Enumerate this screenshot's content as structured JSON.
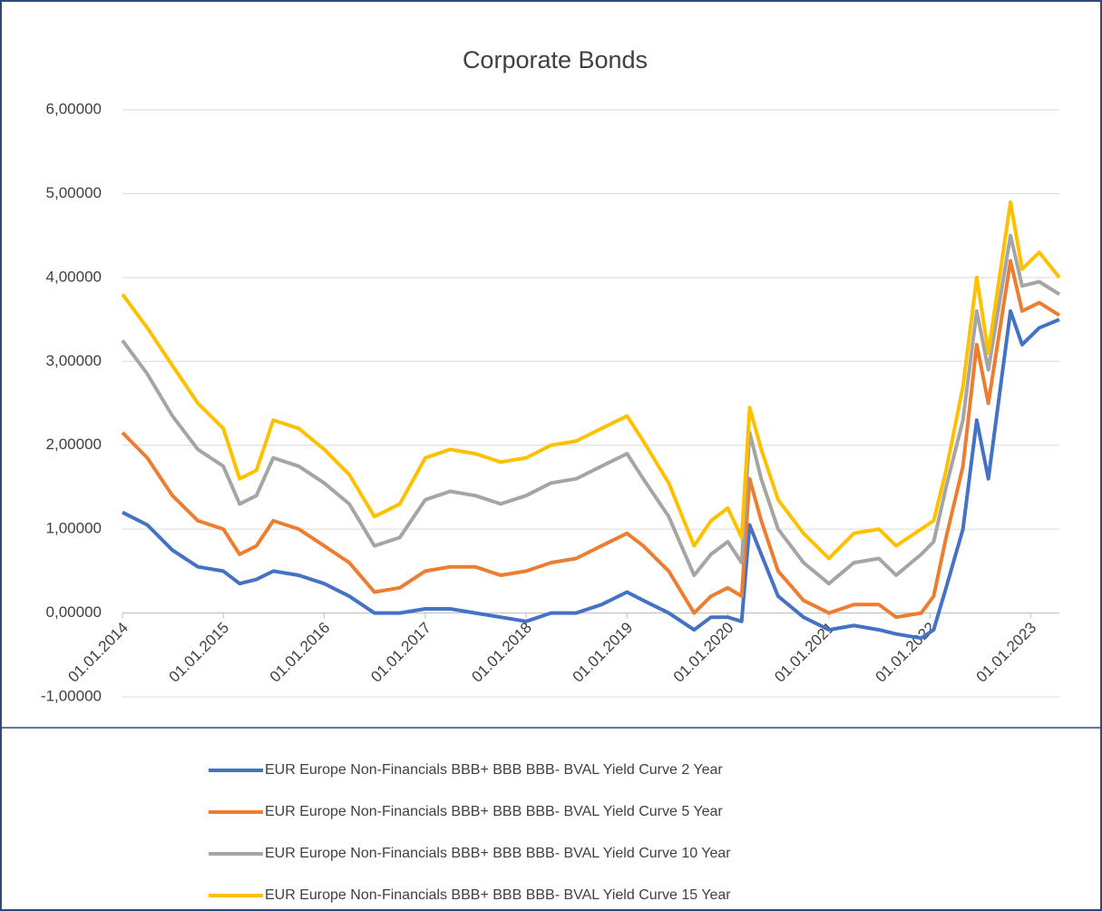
{
  "chart_data": {
    "type": "line",
    "title": "Corporate Bonds",
    "x": [
      "2014-01-01",
      "2014-04-01",
      "2014-07-01",
      "2014-10-01",
      "2015-01-01",
      "2015-03-01",
      "2015-05-01",
      "2015-07-01",
      "2015-10-01",
      "2016-01-01",
      "2016-04-01",
      "2016-07-01",
      "2016-10-01",
      "2017-01-01",
      "2017-04-01",
      "2017-07-01",
      "2017-10-01",
      "2018-01-01",
      "2018-04-01",
      "2018-07-01",
      "2018-10-01",
      "2019-01-01",
      "2019-03-01",
      "2019-06-01",
      "2019-09-01",
      "2019-11-01",
      "2020-01-01",
      "2020-02-20",
      "2020-03-20",
      "2020-05-01",
      "2020-07-01",
      "2020-10-01",
      "2021-01-01",
      "2021-04-01",
      "2021-07-01",
      "2021-09-01",
      "2021-12-01",
      "2022-01-15",
      "2022-03-01",
      "2022-05-01",
      "2022-06-20",
      "2022-08-01",
      "2022-10-20",
      "2022-12-01",
      "2023-02-01",
      "2023-04-15"
    ],
    "series": [
      {
        "name": "EUR Europe Non-Financials BBB+ BBB  BBB- BVAL Yield Curve 2 Year",
        "color": "#4472c4",
        "values": [
          1.2,
          1.05,
          0.75,
          0.55,
          0.5,
          0.35,
          0.4,
          0.5,
          0.45,
          0.35,
          0.2,
          0.0,
          0.0,
          0.05,
          0.05,
          0.0,
          -0.05,
          -0.1,
          0.0,
          0.0,
          0.1,
          0.25,
          0.15,
          0.0,
          -0.2,
          -0.05,
          -0.05,
          -0.1,
          1.05,
          0.7,
          0.2,
          -0.05,
          -0.2,
          -0.15,
          -0.2,
          -0.25,
          -0.3,
          -0.2,
          0.3,
          1.0,
          2.3,
          1.6,
          3.6,
          3.2,
          3.4,
          3.5
        ]
      },
      {
        "name": "EUR Europe Non-Financials BBB+ BBB  BBB- BVAL Yield Curve 5 Year",
        "color": "#ed7d31",
        "values": [
          2.15,
          1.85,
          1.4,
          1.1,
          1.0,
          0.7,
          0.8,
          1.1,
          1.0,
          0.8,
          0.6,
          0.25,
          0.3,
          0.5,
          0.55,
          0.55,
          0.45,
          0.5,
          0.6,
          0.65,
          0.8,
          0.95,
          0.8,
          0.5,
          0.0,
          0.2,
          0.3,
          0.2,
          1.6,
          1.1,
          0.5,
          0.15,
          0.0,
          0.1,
          0.1,
          -0.05,
          0.0,
          0.2,
          0.9,
          1.75,
          3.2,
          2.5,
          4.2,
          3.6,
          3.7,
          3.55
        ]
      },
      {
        "name": "EUR Europe Non-Financials BBB+ BBB  BBB- BVAL Yield Curve 10 Year",
        "color": "#a5a5a5",
        "values": [
          3.25,
          2.85,
          2.35,
          1.95,
          1.75,
          1.3,
          1.4,
          1.85,
          1.75,
          1.55,
          1.3,
          0.8,
          0.9,
          1.35,
          1.45,
          1.4,
          1.3,
          1.4,
          1.55,
          1.6,
          1.75,
          1.9,
          1.6,
          1.15,
          0.45,
          0.7,
          0.85,
          0.6,
          2.15,
          1.6,
          1.0,
          0.6,
          0.35,
          0.6,
          0.65,
          0.45,
          0.7,
          0.85,
          1.5,
          2.3,
          3.6,
          2.9,
          4.5,
          3.9,
          3.95,
          3.8
        ]
      },
      {
        "name": "EUR Europe Non-Financials BBB+ BBB  BBB- BVAL Yield Curve 15 Year",
        "color": "#ffc000",
        "values": [
          3.8,
          3.4,
          2.95,
          2.5,
          2.2,
          1.6,
          1.7,
          2.3,
          2.2,
          1.95,
          1.65,
          1.15,
          1.3,
          1.85,
          1.95,
          1.9,
          1.8,
          1.85,
          2.0,
          2.05,
          2.2,
          2.35,
          2.05,
          1.55,
          0.8,
          1.1,
          1.25,
          0.9,
          2.45,
          1.95,
          1.35,
          0.95,
          0.65,
          0.95,
          1.0,
          0.8,
          1.0,
          1.1,
          1.7,
          2.7,
          4.0,
          3.1,
          4.9,
          4.1,
          4.3,
          4.0
        ]
      }
    ],
    "xlim": [
      "2014-01-01",
      "2023-04-15"
    ],
    "xticks": [
      {
        "value": "2014-01-01",
        "label": "01.01.2014"
      },
      {
        "value": "2015-01-01",
        "label": "01.01.2015"
      },
      {
        "value": "2016-01-01",
        "label": "01.01.2016"
      },
      {
        "value": "2017-01-01",
        "label": "01.01.2017"
      },
      {
        "value": "2018-01-01",
        "label": "01.01.2018"
      },
      {
        "value": "2019-01-01",
        "label": "01.01.2019"
      },
      {
        "value": "2020-01-01",
        "label": "01.01.2020"
      },
      {
        "value": "2021-01-01",
        "label": "01.01.2021"
      },
      {
        "value": "2022-01-01",
        "label": "01.01.2022"
      },
      {
        "value": "2023-01-01",
        "label": "01.01.2023"
      }
    ],
    "ylim": [
      -1,
      6
    ],
    "yticks": [
      {
        "value": -1,
        "label": "-1,00000"
      },
      {
        "value": 0,
        "label": "0,00000"
      },
      {
        "value": 1,
        "label": "1,00000"
      },
      {
        "value": 2,
        "label": "2,00000"
      },
      {
        "value": 3,
        "label": "3,00000"
      },
      {
        "value": 4,
        "label": "4,00000"
      },
      {
        "value": 5,
        "label": "5,00000"
      },
      {
        "value": 6,
        "label": "6,00000"
      }
    ],
    "grid": true,
    "legend": "bottom"
  }
}
